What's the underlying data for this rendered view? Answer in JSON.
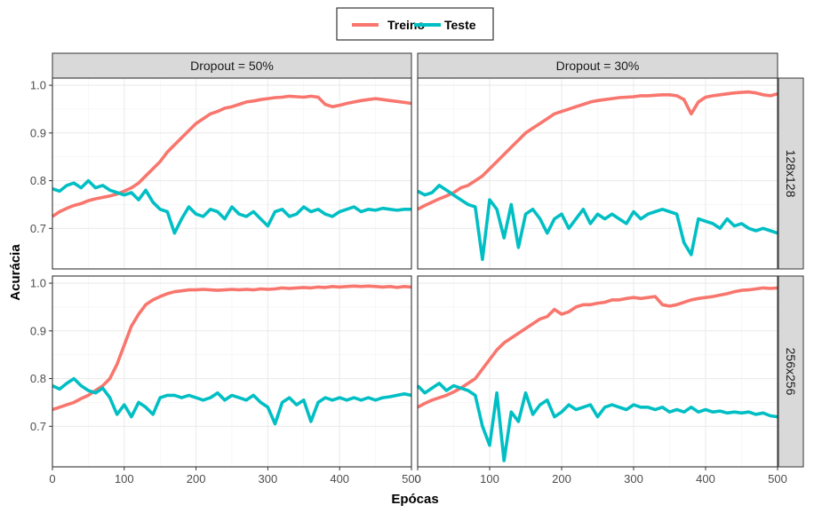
{
  "chart_data": {
    "type": "line",
    "xlabel": "Epócas",
    "ylabel": "Acurácia",
    "xlim": [
      0,
      500
    ],
    "ylim": [
      0.615,
      1.015
    ],
    "xticks": [
      0,
      100,
      200,
      300,
      400,
      500
    ],
    "yticks": [
      0.7,
      0.8,
      0.9,
      1.0
    ],
    "ytick_labels": [
      "0.7",
      "0.8",
      "0.9",
      "1.0"
    ],
    "grid": true,
    "legend_position": "top-center",
    "columns": [
      "Dropout = 50%",
      "Dropout = 30%"
    ],
    "rows": [
      "128x128",
      "256x256"
    ],
    "series_styles": [
      {
        "name": "Treino",
        "color": "#F8766D"
      },
      {
        "name": "Teste",
        "color": "#00BFC4"
      }
    ],
    "panels": [
      {
        "column": "Dropout = 50%",
        "row": "128x128",
        "series": [
          {
            "name": "Treino",
            "x": [
              0,
              10,
              20,
              30,
              40,
              50,
              60,
              70,
              80,
              90,
              100,
              110,
              120,
              130,
              140,
              150,
              160,
              170,
              180,
              190,
              200,
              210,
              220,
              230,
              240,
              250,
              260,
              270,
              280,
              290,
              300,
              310,
              320,
              330,
              340,
              350,
              360,
              370,
              380,
              390,
              400,
              410,
              420,
              430,
              440,
              450,
              460,
              470,
              480,
              490,
              500
            ],
            "y": [
              0.725,
              0.735,
              0.742,
              0.748,
              0.752,
              0.758,
              0.762,
              0.765,
              0.768,
              0.772,
              0.778,
              0.785,
              0.795,
              0.81,
              0.825,
              0.84,
              0.86,
              0.875,
              0.89,
              0.905,
              0.92,
              0.93,
              0.94,
              0.945,
              0.952,
              0.955,
              0.96,
              0.965,
              0.967,
              0.97,
              0.972,
              0.974,
              0.975,
              0.977,
              0.976,
              0.975,
              0.977,
              0.975,
              0.96,
              0.955,
              0.958,
              0.962,
              0.965,
              0.968,
              0.97,
              0.972,
              0.97,
              0.968,
              0.966,
              0.964,
              0.962
            ]
          },
          {
            "name": "Teste",
            "x": [
              0,
              10,
              20,
              30,
              40,
              50,
              60,
              70,
              80,
              90,
              100,
              110,
              120,
              130,
              140,
              150,
              160,
              170,
              180,
              190,
              200,
              210,
              220,
              230,
              240,
              250,
              260,
              270,
              280,
              290,
              300,
              310,
              320,
              330,
              340,
              350,
              360,
              370,
              380,
              390,
              400,
              410,
              420,
              430,
              440,
              450,
              460,
              470,
              480,
              490,
              500
            ],
            "y": [
              0.783,
              0.778,
              0.79,
              0.795,
              0.785,
              0.8,
              0.785,
              0.79,
              0.78,
              0.775,
              0.77,
              0.775,
              0.76,
              0.78,
              0.755,
              0.74,
              0.735,
              0.69,
              0.72,
              0.745,
              0.73,
              0.725,
              0.74,
              0.735,
              0.72,
              0.745,
              0.73,
              0.725,
              0.735,
              0.72,
              0.705,
              0.735,
              0.74,
              0.725,
              0.73,
              0.745,
              0.735,
              0.74,
              0.73,
              0.725,
              0.735,
              0.74,
              0.745,
              0.735,
              0.74,
              0.738,
              0.742,
              0.74,
              0.738,
              0.74,
              0.74
            ]
          }
        ]
      },
      {
        "column": "Dropout = 30%",
        "row": "128x128",
        "series": [
          {
            "name": "Treino",
            "x": [
              0,
              10,
              20,
              30,
              40,
              50,
              60,
              70,
              80,
              90,
              100,
              110,
              120,
              130,
              140,
              150,
              160,
              170,
              180,
              190,
              200,
              210,
              220,
              230,
              240,
              250,
              260,
              270,
              280,
              290,
              300,
              310,
              320,
              330,
              340,
              350,
              360,
              370,
              380,
              390,
              400,
              410,
              420,
              430,
              440,
              450,
              460,
              470,
              480,
              490,
              500
            ],
            "y": [
              0.74,
              0.748,
              0.755,
              0.762,
              0.768,
              0.775,
              0.785,
              0.79,
              0.8,
              0.81,
              0.825,
              0.84,
              0.855,
              0.87,
              0.885,
              0.9,
              0.91,
              0.92,
              0.93,
              0.94,
              0.945,
              0.95,
              0.955,
              0.96,
              0.965,
              0.968,
              0.97,
              0.972,
              0.974,
              0.975,
              0.976,
              0.978,
              0.978,
              0.979,
              0.98,
              0.98,
              0.978,
              0.97,
              0.94,
              0.965,
              0.975,
              0.978,
              0.98,
              0.982,
              0.984,
              0.985,
              0.986,
              0.984,
              0.98,
              0.978,
              0.982
            ]
          },
          {
            "name": "Teste",
            "x": [
              0,
              10,
              20,
              30,
              40,
              50,
              60,
              70,
              80,
              90,
              100,
              110,
              120,
              130,
              140,
              150,
              160,
              170,
              180,
              190,
              200,
              210,
              220,
              230,
              240,
              250,
              260,
              270,
              280,
              290,
              300,
              310,
              320,
              330,
              340,
              350,
              360,
              370,
              380,
              390,
              400,
              410,
              420,
              430,
              440,
              450,
              460,
              470,
              480,
              490,
              500
            ],
            "y": [
              0.778,
              0.77,
              0.775,
              0.79,
              0.78,
              0.77,
              0.76,
              0.75,
              0.745,
              0.635,
              0.76,
              0.74,
              0.68,
              0.75,
              0.66,
              0.73,
              0.74,
              0.72,
              0.69,
              0.72,
              0.73,
              0.7,
              0.72,
              0.74,
              0.71,
              0.73,
              0.72,
              0.73,
              0.72,
              0.71,
              0.735,
              0.72,
              0.73,
              0.735,
              0.74,
              0.735,
              0.73,
              0.67,
              0.645,
              0.72,
              0.715,
              0.71,
              0.7,
              0.72,
              0.705,
              0.71,
              0.7,
              0.695,
              0.7,
              0.695,
              0.69
            ]
          }
        ]
      },
      {
        "column": "Dropout = 50%",
        "row": "256x256",
        "series": [
          {
            "name": "Treino",
            "x": [
              0,
              10,
              20,
              30,
              40,
              50,
              60,
              70,
              80,
              90,
              100,
              110,
              120,
              130,
              140,
              150,
              160,
              170,
              180,
              190,
              200,
              210,
              220,
              230,
              240,
              250,
              260,
              270,
              280,
              290,
              300,
              310,
              320,
              330,
              340,
              350,
              360,
              370,
              380,
              390,
              400,
              410,
              420,
              430,
              440,
              450,
              460,
              470,
              480,
              490,
              500
            ],
            "y": [
              0.735,
              0.74,
              0.745,
              0.75,
              0.758,
              0.765,
              0.775,
              0.785,
              0.8,
              0.83,
              0.87,
              0.91,
              0.935,
              0.955,
              0.965,
              0.972,
              0.978,
              0.982,
              0.984,
              0.986,
              0.986,
              0.987,
              0.986,
              0.985,
              0.986,
              0.987,
              0.986,
              0.987,
              0.986,
              0.988,
              0.987,
              0.988,
              0.99,
              0.989,
              0.99,
              0.991,
              0.99,
              0.992,
              0.991,
              0.993,
              0.992,
              0.993,
              0.994,
              0.993,
              0.994,
              0.993,
              0.992,
              0.993,
              0.991,
              0.993,
              0.992
            ]
          },
          {
            "name": "Teste",
            "x": [
              0,
              10,
              20,
              30,
              40,
              50,
              60,
              70,
              80,
              90,
              100,
              110,
              120,
              130,
              140,
              150,
              160,
              170,
              180,
              190,
              200,
              210,
              220,
              230,
              240,
              250,
              260,
              270,
              280,
              290,
              300,
              310,
              320,
              330,
              340,
              350,
              360,
              370,
              380,
              390,
              400,
              410,
              420,
              430,
              440,
              450,
              460,
              470,
              480,
              490,
              500
            ],
            "y": [
              0.785,
              0.778,
              0.79,
              0.8,
              0.785,
              0.775,
              0.77,
              0.78,
              0.76,
              0.725,
              0.745,
              0.72,
              0.75,
              0.74,
              0.725,
              0.76,
              0.765,
              0.765,
              0.76,
              0.765,
              0.76,
              0.755,
              0.76,
              0.77,
              0.755,
              0.765,
              0.76,
              0.755,
              0.765,
              0.75,
              0.74,
              0.705,
              0.75,
              0.76,
              0.745,
              0.755,
              0.71,
              0.75,
              0.76,
              0.755,
              0.76,
              0.755,
              0.76,
              0.755,
              0.76,
              0.755,
              0.76,
              0.762,
              0.765,
              0.768,
              0.765
            ]
          }
        ]
      },
      {
        "column": "Dropout = 30%",
        "row": "256x256",
        "series": [
          {
            "name": "Treino",
            "x": [
              0,
              10,
              20,
              30,
              40,
              50,
              60,
              70,
              80,
              90,
              100,
              110,
              120,
              130,
              140,
              150,
              160,
              170,
              180,
              190,
              200,
              210,
              220,
              230,
              240,
              250,
              260,
              270,
              280,
              290,
              300,
              310,
              320,
              330,
              340,
              350,
              360,
              370,
              380,
              390,
              400,
              410,
              420,
              430,
              440,
              450,
              460,
              470,
              480,
              490,
              500
            ],
            "y": [
              0.74,
              0.748,
              0.755,
              0.76,
              0.765,
              0.772,
              0.78,
              0.79,
              0.8,
              0.82,
              0.84,
              0.86,
              0.875,
              0.885,
              0.895,
              0.905,
              0.915,
              0.925,
              0.93,
              0.945,
              0.935,
              0.94,
              0.95,
              0.955,
              0.955,
              0.958,
              0.96,
              0.965,
              0.965,
              0.968,
              0.97,
              0.968,
              0.97,
              0.972,
              0.955,
              0.952,
              0.955,
              0.96,
              0.965,
              0.968,
              0.97,
              0.972,
              0.975,
              0.978,
              0.982,
              0.985,
              0.986,
              0.988,
              0.99,
              0.989,
              0.99
            ]
          },
          {
            "name": "Teste",
            "x": [
              0,
              10,
              20,
              30,
              40,
              50,
              60,
              70,
              80,
              90,
              100,
              110,
              120,
              130,
              140,
              150,
              160,
              170,
              180,
              190,
              200,
              210,
              220,
              230,
              240,
              250,
              260,
              270,
              280,
              290,
              300,
              310,
              320,
              330,
              340,
              350,
              360,
              370,
              380,
              390,
              400,
              410,
              420,
              430,
              440,
              450,
              460,
              470,
              480,
              490,
              500
            ],
            "y": [
              0.785,
              0.77,
              0.78,
              0.79,
              0.775,
              0.785,
              0.78,
              0.775,
              0.765,
              0.7,
              0.66,
              0.77,
              0.628,
              0.73,
              0.71,
              0.77,
              0.725,
              0.745,
              0.755,
              0.72,
              0.73,
              0.745,
              0.735,
              0.74,
              0.745,
              0.72,
              0.74,
              0.745,
              0.74,
              0.735,
              0.745,
              0.74,
              0.74,
              0.735,
              0.74,
              0.73,
              0.735,
              0.73,
              0.74,
              0.73,
              0.735,
              0.73,
              0.732,
              0.728,
              0.73,
              0.728,
              0.73,
              0.725,
              0.728,
              0.722,
              0.72
            ]
          }
        ]
      }
    ]
  }
}
